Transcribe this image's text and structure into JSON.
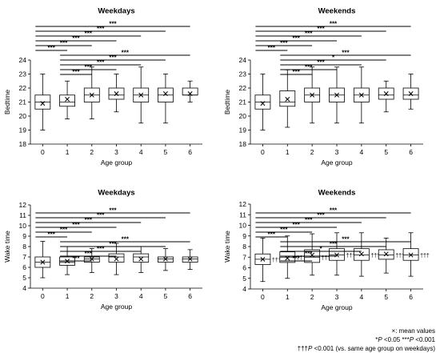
{
  "chart_data": [
    {
      "type": "box",
      "title": "Weekdays",
      "xlabel": "Age group",
      "ylabel": "Bedtime",
      "categories": [
        "0",
        "1",
        "2",
        "3",
        "4",
        "5",
        "6"
      ],
      "ylim": [
        18,
        24
      ],
      "yticks": [
        "18",
        "19",
        "20",
        "21",
        "22",
        "23",
        "24"
      ],
      "boxes": [
        {
          "min": 19.0,
          "q1": 20.5,
          "median": 21.0,
          "q3": 21.5,
          "max": 23.0,
          "mean": 20.9
        },
        {
          "min": 19.8,
          "q1": 20.7,
          "median": 21.0,
          "q3": 21.5,
          "max": 22.5,
          "mean": 21.2
        },
        {
          "min": 19.8,
          "q1": 21.0,
          "median": 21.5,
          "q3": 22.0,
          "max": 23.5,
          "mean": 21.5
        },
        {
          "min": 20.3,
          "q1": 21.2,
          "median": 21.5,
          "q3": 22.0,
          "max": 23.0,
          "mean": 21.6
        },
        {
          "min": 19.5,
          "q1": 21.0,
          "median": 21.5,
          "q3": 22.0,
          "max": 23.5,
          "mean": 21.5
        },
        {
          "min": 19.5,
          "q1": 21.0,
          "median": 21.5,
          "q3": 22.0,
          "max": 23.0,
          "mean": 21.6
        },
        {
          "min": 21.0,
          "q1": 21.5,
          "median": 21.5,
          "q3": 22.0,
          "max": 22.5,
          "mean": 21.6
        }
      ],
      "significance": [
        {
          "from": 0,
          "to": 6,
          "label": "***"
        },
        {
          "from": 0,
          "to": 5,
          "label": "***"
        },
        {
          "from": 0,
          "to": 4,
          "label": "***"
        },
        {
          "from": 0,
          "to": 3,
          "label": "***"
        },
        {
          "from": 0,
          "to": 2,
          "label": "***"
        },
        {
          "from": 0,
          "to": 1,
          "label": "***"
        },
        {
          "from": 1,
          "to": 6,
          "label": "***"
        },
        {
          "from": 1,
          "to": 5,
          "label": "***"
        },
        {
          "from": 1,
          "to": 4,
          "label": "***"
        },
        {
          "from": 1,
          "to": 3,
          "label": "***"
        },
        {
          "from": 1,
          "to": 2,
          "label": "***"
        }
      ],
      "daggers": []
    },
    {
      "type": "box",
      "title": "Weekends",
      "xlabel": "Age group",
      "ylabel": "Bedtime",
      "categories": [
        "0",
        "1",
        "2",
        "3",
        "4",
        "5",
        "6"
      ],
      "ylim": [
        18,
        24
      ],
      "yticks": [
        "18",
        "19",
        "20",
        "21",
        "22",
        "23",
        "24"
      ],
      "boxes": [
        {
          "min": 19.0,
          "q1": 20.5,
          "median": 21.0,
          "q3": 21.5,
          "max": 23.0,
          "mean": 20.9
        },
        {
          "min": 19.2,
          "q1": 20.7,
          "median": 21.0,
          "q3": 21.8,
          "max": 23.3,
          "mean": 21.2
        },
        {
          "min": 19.5,
          "q1": 21.0,
          "median": 21.5,
          "q3": 22.0,
          "max": 23.5,
          "mean": 21.5
        },
        {
          "min": 19.5,
          "q1": 21.0,
          "median": 21.5,
          "q3": 22.0,
          "max": 23.5,
          "mean": 21.5
        },
        {
          "min": 19.5,
          "q1": 21.0,
          "median": 21.5,
          "q3": 22.0,
          "max": 23.5,
          "mean": 21.5
        },
        {
          "min": 20.3,
          "q1": 21.2,
          "median": 21.5,
          "q3": 22.0,
          "max": 22.5,
          "mean": 21.6
        },
        {
          "min": 20.5,
          "q1": 21.2,
          "median": 21.5,
          "q3": 22.0,
          "max": 23.0,
          "mean": 21.6
        }
      ],
      "significance": [
        {
          "from": 0,
          "to": 6,
          "label": "***"
        },
        {
          "from": 0,
          "to": 5,
          "label": "***"
        },
        {
          "from": 0,
          "to": 4,
          "label": "***"
        },
        {
          "from": 0,
          "to": 3,
          "label": "***"
        },
        {
          "from": 0,
          "to": 2,
          "label": "***"
        },
        {
          "from": 0,
          "to": 1,
          "label": "***"
        },
        {
          "from": 1,
          "to": 6,
          "label": "***"
        },
        {
          "from": 1,
          "to": 5,
          "label": "*"
        },
        {
          "from": 1,
          "to": 4,
          "label": "***"
        },
        {
          "from": 1,
          "to": 3,
          "label": "***"
        },
        {
          "from": 1,
          "to": 2,
          "label": "***"
        }
      ],
      "daggers": []
    },
    {
      "type": "box",
      "title": "Weekdays",
      "xlabel": "Age group",
      "ylabel": "Wake time",
      "categories": [
        "0",
        "1",
        "2",
        "3",
        "4",
        "5",
        "6"
      ],
      "ylim": [
        4,
        12
      ],
      "yticks": [
        "4",
        "5",
        "6",
        "7",
        "8",
        "9",
        "10",
        "11",
        "12"
      ],
      "boxes": [
        {
          "min": 5.0,
          "q1": 6.0,
          "median": 6.5,
          "q3": 7.0,
          "max": 8.5,
          "mean": 6.5
        },
        {
          "min": 5.3,
          "q1": 6.2,
          "median": 6.5,
          "q3": 7.0,
          "max": 8.0,
          "mean": 6.6
        },
        {
          "min": 5.5,
          "q1": 6.5,
          "median": 6.8,
          "q3": 7.0,
          "max": 7.8,
          "mean": 6.8
        },
        {
          "min": 5.3,
          "q1": 6.5,
          "median": 7.0,
          "q3": 7.3,
          "max": 8.3,
          "mean": 6.8
        },
        {
          "min": 5.5,
          "q1": 6.5,
          "median": 7.0,
          "q3": 7.3,
          "max": 8.0,
          "mean": 6.8
        },
        {
          "min": 5.7,
          "q1": 6.5,
          "median": 6.8,
          "q3": 7.0,
          "max": 7.8,
          "mean": 6.8
        },
        {
          "min": 5.8,
          "q1": 6.5,
          "median": 6.8,
          "q3": 7.0,
          "max": 7.7,
          "mean": 6.8
        }
      ],
      "significance": [
        {
          "from": 0,
          "to": 6,
          "label": "***"
        },
        {
          "from": 0,
          "to": 5,
          "label": "***"
        },
        {
          "from": 0,
          "to": 4,
          "label": "***"
        },
        {
          "from": 0,
          "to": 3,
          "label": "***"
        },
        {
          "from": 0,
          "to": 2,
          "label": "***"
        },
        {
          "from": 0,
          "to": 1,
          "label": "***"
        },
        {
          "from": 1,
          "to": 6,
          "label": "***"
        },
        {
          "from": 1,
          "to": 5,
          "label": "***"
        },
        {
          "from": 1,
          "to": 4,
          "label": "***"
        },
        {
          "from": 1,
          "to": 3,
          "label": "***"
        },
        {
          "from": 1,
          "to": 2,
          "label": "***"
        }
      ],
      "daggers": []
    },
    {
      "type": "box",
      "title": "Weekends",
      "xlabel": "Age group",
      "ylabel": "Wake time",
      "categories": [
        "0",
        "1",
        "2",
        "3",
        "4",
        "5",
        "6"
      ],
      "ylim": [
        4,
        12
      ],
      "yticks": [
        "4",
        "5",
        "6",
        "7",
        "8",
        "9",
        "10",
        "11",
        "12"
      ],
      "boxes": [
        {
          "min": 4.7,
          "q1": 6.3,
          "median": 6.8,
          "q3": 7.3,
          "max": 8.8,
          "mean": 6.8
        },
        {
          "min": 5.0,
          "q1": 6.5,
          "median": 7.0,
          "q3": 7.5,
          "max": 9.0,
          "mean": 6.9
        },
        {
          "min": 5.3,
          "q1": 6.5,
          "median": 7.0,
          "q3": 7.7,
          "max": 9.2,
          "mean": 7.2
        },
        {
          "min": 5.3,
          "q1": 6.7,
          "median": 7.2,
          "q3": 7.8,
          "max": 9.3,
          "mean": 7.2
        },
        {
          "min": 5.2,
          "q1": 6.7,
          "median": 7.2,
          "q3": 7.8,
          "max": 9.3,
          "mean": 7.3
        },
        {
          "min": 5.5,
          "q1": 6.8,
          "median": 7.2,
          "q3": 7.7,
          "max": 8.8,
          "mean": 7.3
        },
        {
          "min": 5.2,
          "q1": 6.7,
          "median": 7.2,
          "q3": 7.8,
          "max": 9.3,
          "mean": 7.2
        }
      ],
      "significance": [
        {
          "from": 0,
          "to": 6,
          "label": "***"
        },
        {
          "from": 0,
          "to": 5,
          "label": "***"
        },
        {
          "from": 0,
          "to": 4,
          "label": "***"
        },
        {
          "from": 0,
          "to": 3,
          "label": "***"
        },
        {
          "from": 0,
          "to": 2,
          "label": "***"
        },
        {
          "from": 0,
          "to": 1,
          "label": "***"
        },
        {
          "from": 1,
          "to": 6,
          "label": "***"
        },
        {
          "from": 1,
          "to": 5,
          "label": "***"
        },
        {
          "from": 1,
          "to": 4,
          "label": "*"
        },
        {
          "from": 1,
          "to": 3,
          "label": "***"
        },
        {
          "from": 1,
          "to": 2,
          "label": "***"
        }
      ],
      "daggers": [
        "†††",
        "†††",
        "†††",
        "†††",
        "†††",
        "†††",
        "†††"
      ]
    }
  ],
  "legend": {
    "mean_marker": "×",
    "mean_text": ": mean values",
    "p_star_single": "*",
    "p_label": "P",
    "p_05": " <0.05 ",
    "p_star_triple": "***",
    "p_001": " <0.001",
    "dagger": "†††",
    "dagger_note": " <0.001  (vs. same age group on weekdays)"
  }
}
